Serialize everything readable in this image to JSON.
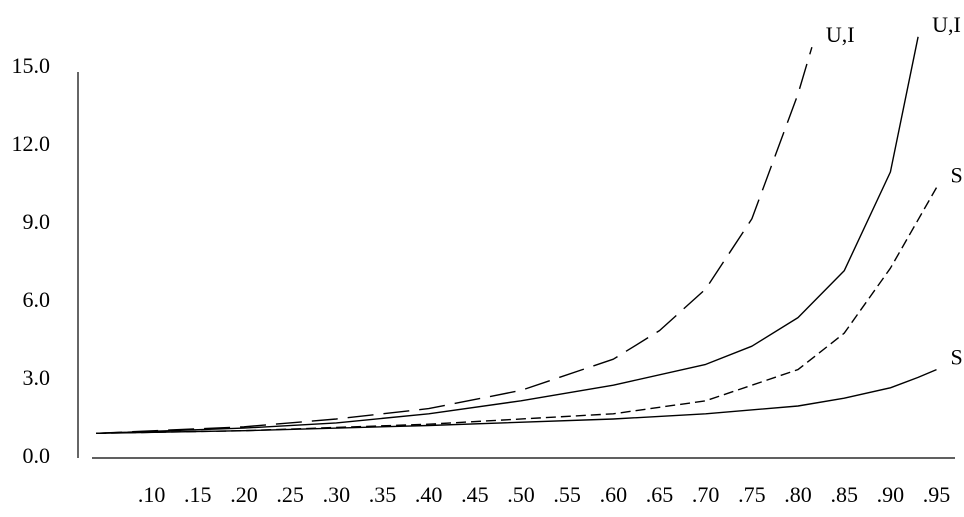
{
  "chart_data": {
    "type": "line",
    "xlim": [
      0.03,
      0.97
    ],
    "ylim": [
      0,
      15
    ],
    "xticks": [
      {
        "value": 0.1,
        "label": ".10"
      },
      {
        "value": 0.15,
        "label": ".15"
      },
      {
        "value": 0.2,
        "label": ".20"
      },
      {
        "value": 0.25,
        "label": ".25"
      },
      {
        "value": 0.3,
        "label": ".30"
      },
      {
        "value": 0.35,
        "label": ".35"
      },
      {
        "value": 0.4,
        "label": ".40"
      },
      {
        "value": 0.45,
        "label": ".45"
      },
      {
        "value": 0.5,
        "label": ".50"
      },
      {
        "value": 0.55,
        "label": ".55"
      },
      {
        "value": 0.6,
        "label": ".60"
      },
      {
        "value": 0.65,
        "label": ".65"
      },
      {
        "value": 0.7,
        "label": ".70"
      },
      {
        "value": 0.75,
        "label": ".75"
      },
      {
        "value": 0.8,
        "label": ".80"
      },
      {
        "value": 0.85,
        "label": ".85"
      },
      {
        "value": 0.9,
        "label": ".90"
      },
      {
        "value": 0.95,
        "label": ".95"
      }
    ],
    "yticks": [
      {
        "value": 0,
        "label": "0.0"
      },
      {
        "value": 3,
        "label": "3.0"
      },
      {
        "value": 6,
        "label": "6.0"
      },
      {
        "value": 9,
        "label": "9.0"
      },
      {
        "value": 12,
        "label": "12.0"
      },
      {
        "value": 15,
        "label": "15.0"
      }
    ],
    "series": [
      {
        "name": "U,I",
        "color": "#000000",
        "dash": "long",
        "x": [
          0.04,
          0.2,
          0.3,
          0.4,
          0.5,
          0.6,
          0.65,
          0.7,
          0.75,
          0.8,
          0.815
        ],
        "values": [
          0.95,
          1.2,
          1.5,
          1.9,
          2.6,
          3.8,
          4.9,
          6.5,
          9.2,
          14.0,
          15.8
        ]
      },
      {
        "name": "U,I",
        "color": "#000000",
        "dash": "solid",
        "x": [
          0.04,
          0.2,
          0.3,
          0.4,
          0.5,
          0.6,
          0.7,
          0.75,
          0.8,
          0.85,
          0.9,
          0.93
        ],
        "values": [
          0.95,
          1.15,
          1.35,
          1.7,
          2.2,
          2.8,
          3.6,
          4.3,
          5.4,
          7.2,
          11.0,
          16.2
        ]
      },
      {
        "name": "S",
        "color": "#000000",
        "dash": "medium",
        "x": [
          0.04,
          0.2,
          0.4,
          0.6,
          0.7,
          0.8,
          0.85,
          0.9,
          0.95
        ],
        "values": [
          0.95,
          1.05,
          1.3,
          1.7,
          2.2,
          3.4,
          4.8,
          7.3,
          10.4
        ]
      },
      {
        "name": "S",
        "color": "#000000",
        "dash": "solid",
        "x": [
          0.04,
          0.2,
          0.4,
          0.6,
          0.7,
          0.8,
          0.85,
          0.9,
          0.93,
          0.95
        ],
        "values": [
          0.95,
          1.05,
          1.25,
          1.5,
          1.7,
          2.0,
          2.3,
          2.7,
          3.1,
          3.4
        ]
      }
    ]
  }
}
